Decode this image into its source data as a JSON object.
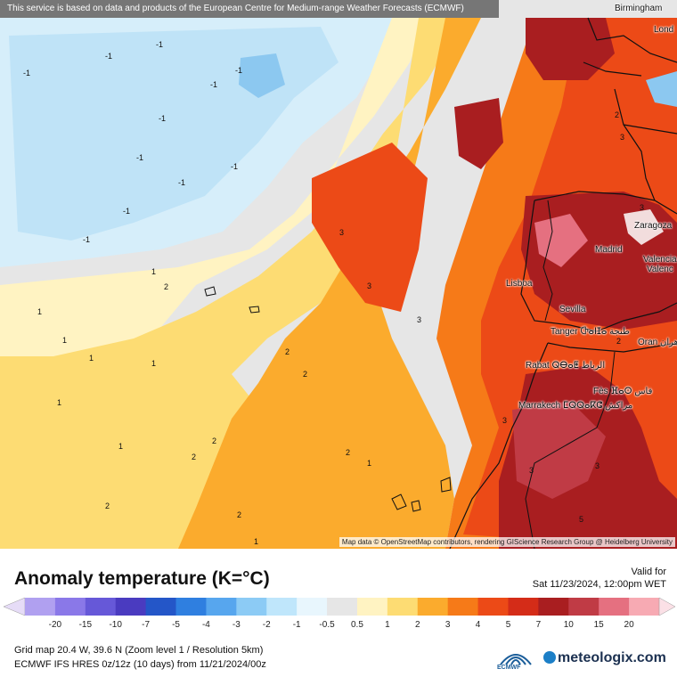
{
  "banner": "This service is based on data and products of the European Centre for Medium-range Weather Forecasts (ECMWF)",
  "map_credit": "Map data © OpenStreetMap contributors, rendering GIScience Research Group @ Heidelberg University",
  "cities": [
    "Birmingham",
    "Lond",
    "Zaragoza",
    "Madrid",
    "Valencia",
    "Valenc",
    "Lisboa",
    "Sevilla",
    "Tanger Ⴇⴰⵏⵊⴰ طنجة",
    "Oran وهران",
    "Rabat ⵕⴱⴰⵟ الرباط",
    "Fès ⴼⴰⵙ فاس",
    "Marrakech ⵎⵕⵕⴰⴽⵛ مراكش"
  ],
  "contour_labels": [
    "-1",
    "-1",
    "-1",
    "-1",
    "-1",
    "-1",
    "-1",
    "-1",
    "-1",
    "-1",
    "-1",
    "1",
    "2",
    "1",
    "1",
    "1",
    "1",
    "2",
    "2",
    "2",
    "2",
    "1",
    "2",
    "2",
    "1",
    "3",
    "3",
    "3",
    "3",
    "3",
    "3",
    "3",
    "2",
    "2",
    "5",
    "3",
    "1",
    "2",
    "1"
  ],
  "title": "Anomaly temperature (K=°C)",
  "valid_label": "Valid for",
  "valid_time": "Sat 11/23/2024, 12:00pm WET",
  "legend": {
    "ticks": [
      "-20",
      "-15",
      "-10",
      "-7",
      "-5",
      "-4",
      "-3",
      "-2",
      "-1",
      "-0.5",
      "0.5",
      "1",
      "2",
      "3",
      "4",
      "5",
      "7",
      "10",
      "15",
      "20"
    ],
    "colors": [
      "#b0a0f0",
      "#8a78e8",
      "#6658d8",
      "#4a3bc0",
      "#2456c8",
      "#2f7fe0",
      "#57a6ee",
      "#8ccbf5",
      "#bfe6fb",
      "#e8f6fd",
      "#e6e6e6",
      "#fff3c2",
      "#fddc73",
      "#fbab2d",
      "#f67a18",
      "#ec4a17",
      "#d42c18",
      "#a91e20",
      "#c03b45",
      "#e57080",
      "#f7aab3"
    ]
  },
  "grid_info": "Grid map 20.4 W, 39.6 N (Zoom level 1 / Resolution 5km)",
  "model_info": "ECMWF IFS HRES 0z/12z (10 days) from 11/21/2024/00z",
  "ecmwf_logo_text": "ECMWF",
  "brand": "meteologix.com"
}
